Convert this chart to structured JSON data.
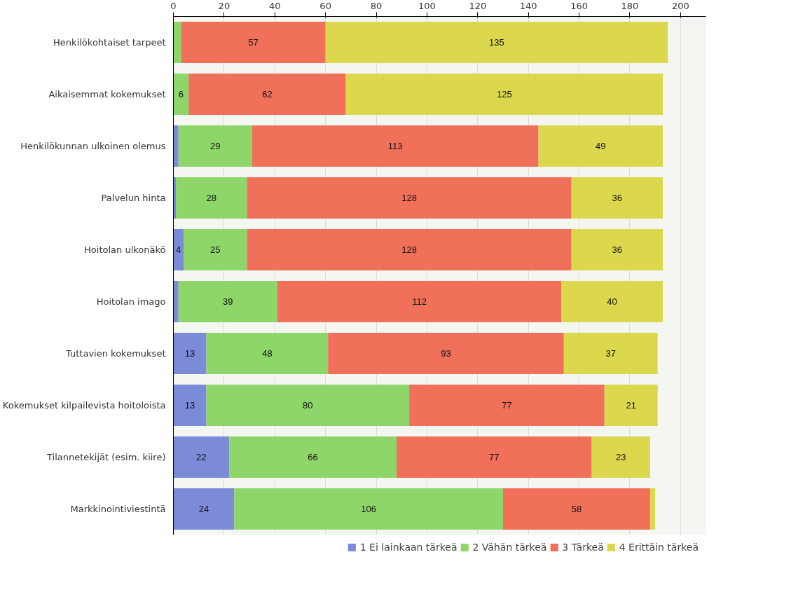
{
  "chart_data": {
    "type": "bar",
    "orientation": "horizontal",
    "stacked": true,
    "categories": [
      "Henkilökohtaiset tarpeet",
      "Aikaisemmat kokemukset",
      "Henkilökunnan ulkoinen olemus",
      "Palvelun hinta",
      "Hoitolan ulkonäkö",
      "Hoitolan imago",
      "Tuttavien kokemukset",
      "Kokemukset kilpailevista hoitoloista",
      "Tilannetekijät (esim. kiire)",
      "Markkinointiviestintä"
    ],
    "series": [
      {
        "name": "1 Ei lainkaan tärkeä",
        "color": "#7b8bd8",
        "values": [
          0,
          0,
          2,
          1,
          4,
          2,
          13,
          13,
          22,
          24
        ],
        "value_labels": [
          null,
          null,
          null,
          null,
          "4",
          null,
          "13",
          "13",
          "22",
          "24"
        ]
      },
      {
        "name": "2 Vähän tärkeä",
        "color": "#8ed66a",
        "values": [
          3,
          6,
          29,
          28,
          25,
          39,
          48,
          80,
          66,
          106
        ],
        "value_labels": [
          null,
          "6",
          "29",
          "28",
          "25",
          "39",
          "48",
          "80",
          "66",
          "106"
        ]
      },
      {
        "name": "3 Tärkeä",
        "color": "#f0705a",
        "values": [
          57,
          62,
          113,
          128,
          128,
          112,
          93,
          77,
          77,
          58
        ],
        "value_labels": [
          "57",
          "62",
          "113",
          "128",
          "128",
          "112",
          "93",
          "77",
          "77",
          "58"
        ]
      },
      {
        "name": "4 Erittäin tärkeä",
        "color": "#dcd84e",
        "values": [
          135,
          125,
          49,
          36,
          36,
          40,
          37,
          21,
          23,
          2
        ],
        "value_labels": [
          "135",
          "125",
          "49",
          "36",
          "36",
          "40",
          "37",
          "21",
          "23",
          null
        ]
      }
    ],
    "xlim": [
      0,
      210
    ],
    "xticks": [
      0,
      20,
      40,
      60,
      80,
      100,
      120,
      140,
      160,
      180,
      200
    ],
    "grid": "x",
    "legend": "bottom"
  }
}
